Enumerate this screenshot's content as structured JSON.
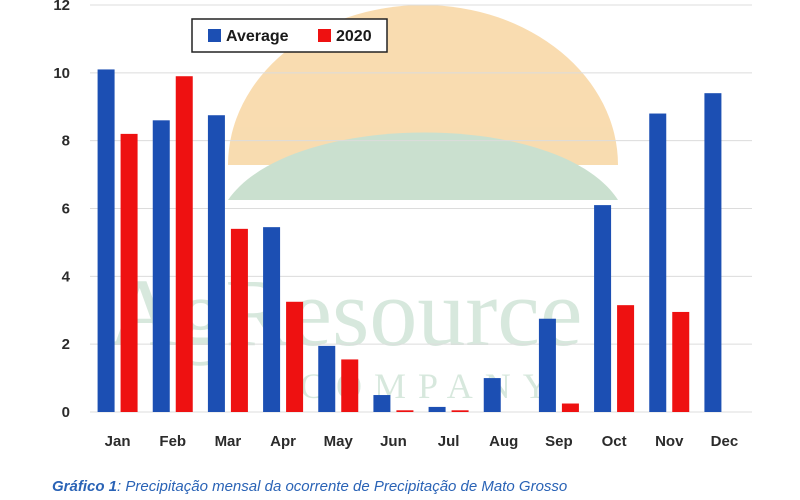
{
  "chart_data": {
    "type": "bar",
    "categories": [
      "Jan",
      "Feb",
      "Mar",
      "Apr",
      "May",
      "Jun",
      "Jul",
      "Aug",
      "Sep",
      "Oct",
      "Nov",
      "Dec"
    ],
    "series": [
      {
        "name": "Average",
        "color": "#1c4fb3",
        "values": [
          10.1,
          8.6,
          8.75,
          5.45,
          1.95,
          0.5,
          0.15,
          1.0,
          2.75,
          6.1,
          8.8,
          9.4
        ]
      },
      {
        "name": "2020",
        "color": "#ee1111",
        "values": [
          8.2,
          9.9,
          5.4,
          3.25,
          1.55,
          0.05,
          0.05,
          null,
          0.25,
          3.15,
          2.95,
          null
        ]
      }
    ],
    "yticks": [
      "0",
      "2",
      "4",
      "6",
      "8",
      "10",
      "12"
    ],
    "ylim": [
      0,
      12
    ],
    "grid": true,
    "legend": "top-left",
    "title": "",
    "xlabel": "",
    "ylabel": ""
  },
  "watermark": {
    "line1": "AgResource",
    "line2": "COMPANY",
    "sun_color": "#f4c070",
    "hill_color": "#9fc8a8"
  },
  "caption": {
    "label": "Gráfico 1",
    "text": ": Precipitação mensal da ocorrente de Precipitação de Mato Grosso"
  }
}
